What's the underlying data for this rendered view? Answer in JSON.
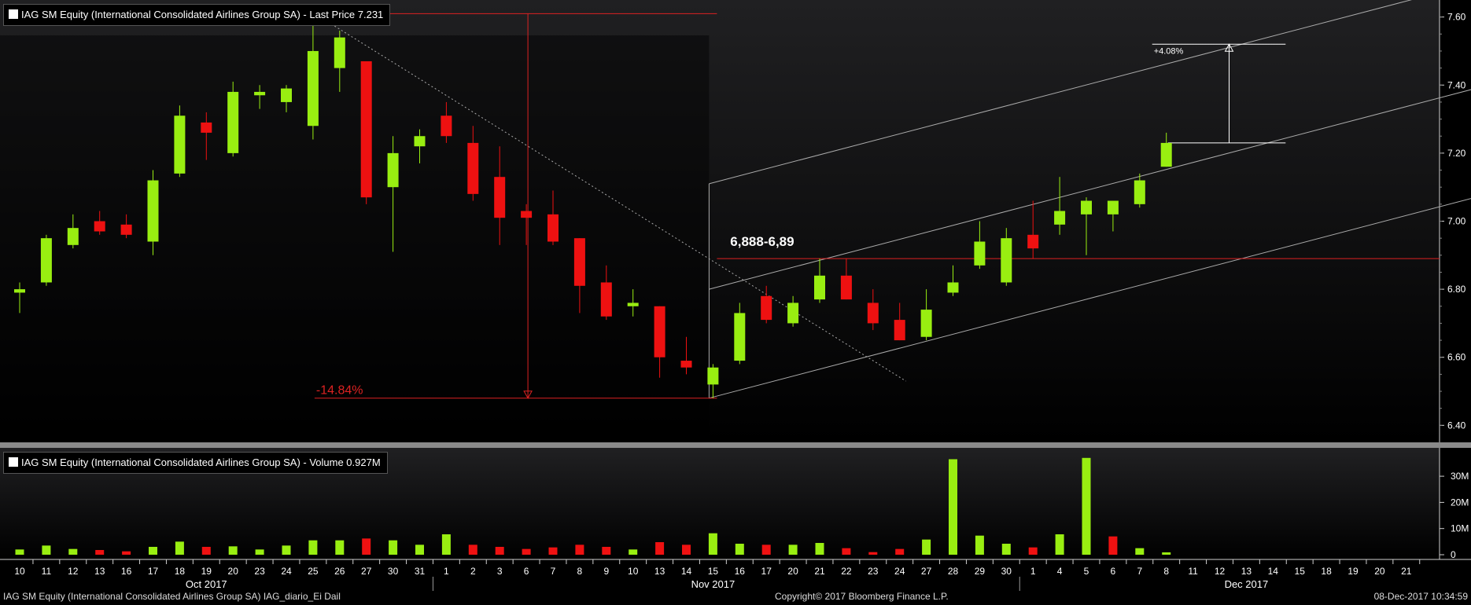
{
  "price_legend": "IAG SM Equity (International Consolidated Airlines Group SA) - Last Price 7.231",
  "volume_legend": "IAG SM Equity (International Consolidated Airlines Group SA) - Volume 0.927M",
  "footer": {
    "left": "IAG SM Equity (International Consolidated Airlines Group SA) IAG_diario_Ei  Dail",
    "center": "Copyright© 2017 Bloomberg Finance L.P.",
    "right": "08-Dec-2017 10:34:59"
  },
  "colors": {
    "up": "#99ee11",
    "down": "#ee1111",
    "background": "#000000",
    "annotation": "#dd2222",
    "channel": "#aaaaaa"
  },
  "chart_data": {
    "type": "candlestick",
    "price_axis": {
      "min": 6.35,
      "max": 7.65,
      "ticks": [
        6.4,
        6.6,
        6.8,
        7.0,
        7.2,
        7.4,
        7.6
      ],
      "tick_labels": [
        "6.40",
        "6.60",
        "6.80",
        "7.00",
        "7.20",
        "7.40",
        "7.60"
      ]
    },
    "volume_axis": {
      "max_millions": 38,
      "ticks": [
        0,
        10,
        20,
        30
      ],
      "tick_labels": [
        "0",
        "10M",
        "20M",
        "30M"
      ]
    },
    "x_labels": [
      "10",
      "11",
      "12",
      "13",
      "16",
      "17",
      "18",
      "19",
      "20",
      "23",
      "24",
      "25",
      "26",
      "27",
      "30",
      "31",
      "1",
      "2",
      "3",
      "6",
      "7",
      "8",
      "9",
      "10",
      "13",
      "14",
      "15",
      "16",
      "17",
      "20",
      "21",
      "22",
      "23",
      "24",
      "27",
      "28",
      "29",
      "30",
      "1",
      "4",
      "5",
      "6",
      "7",
      "8",
      "11",
      "12",
      "13",
      "14",
      "15",
      "18",
      "19",
      "20",
      "21"
    ],
    "month_labels": [
      {
        "label": "Oct 2017",
        "index": 7.5
      },
      {
        "label": "Nov 2017",
        "index": 26.5
      },
      {
        "label": "Dec 2017",
        "index": 46.5
      }
    ],
    "month_separators": [
      15.5,
      37.5
    ],
    "candles": [
      {
        "o": 6.79,
        "h": 6.82,
        "l": 6.73,
        "c": 6.8
      },
      {
        "o": 6.82,
        "h": 6.96,
        "l": 6.81,
        "c": 6.95
      },
      {
        "o": 6.93,
        "h": 7.02,
        "l": 6.92,
        "c": 6.98
      },
      {
        "o": 7.0,
        "h": 7.03,
        "l": 6.96,
        "c": 6.97
      },
      {
        "o": 6.99,
        "h": 7.02,
        "l": 6.95,
        "c": 6.96
      },
      {
        "o": 6.94,
        "h": 7.15,
        "l": 6.9,
        "c": 7.12
      },
      {
        "o": 7.14,
        "h": 7.34,
        "l": 7.13,
        "c": 7.31
      },
      {
        "o": 7.29,
        "h": 7.32,
        "l": 7.18,
        "c": 7.26
      },
      {
        "o": 7.2,
        "h": 7.41,
        "l": 7.19,
        "c": 7.38
      },
      {
        "o": 7.37,
        "h": 7.4,
        "l": 7.33,
        "c": 7.38
      },
      {
        "o": 7.35,
        "h": 7.4,
        "l": 7.32,
        "c": 7.39
      },
      {
        "o": 7.28,
        "h": 7.61,
        "l": 7.24,
        "c": 7.5
      },
      {
        "o": 7.45,
        "h": 7.56,
        "l": 7.38,
        "c": 7.54
      },
      {
        "o": 7.47,
        "h": 7.47,
        "l": 7.05,
        "c": 7.07
      },
      {
        "o": 7.1,
        "h": 7.25,
        "l": 6.91,
        "c": 7.2
      },
      {
        "o": 7.22,
        "h": 7.27,
        "l": 7.17,
        "c": 7.25
      },
      {
        "o": 7.31,
        "h": 7.35,
        "l": 7.23,
        "c": 7.25
      },
      {
        "o": 7.23,
        "h": 7.28,
        "l": 7.06,
        "c": 7.08
      },
      {
        "o": 7.13,
        "h": 7.22,
        "l": 6.93,
        "c": 7.01
      },
      {
        "o": 7.03,
        "h": 7.05,
        "l": 6.93,
        "c": 7.01
      },
      {
        "o": 7.02,
        "h": 7.09,
        "l": 6.93,
        "c": 6.94
      },
      {
        "o": 6.95,
        "h": 6.95,
        "l": 6.73,
        "c": 6.81
      },
      {
        "o": 6.82,
        "h": 6.87,
        "l": 6.71,
        "c": 6.72
      },
      {
        "o": 6.75,
        "h": 6.8,
        "l": 6.72,
        "c": 6.76
      },
      {
        "o": 6.75,
        "h": 6.75,
        "l": 6.54,
        "c": 6.6
      },
      {
        "o": 6.59,
        "h": 6.66,
        "l": 6.55,
        "c": 6.57
      },
      {
        "o": 6.52,
        "h": 6.58,
        "l": 6.48,
        "c": 6.57
      },
      {
        "o": 6.59,
        "h": 6.76,
        "l": 6.58,
        "c": 6.73
      },
      {
        "o": 6.78,
        "h": 6.81,
        "l": 6.7,
        "c": 6.71
      },
      {
        "o": 6.7,
        "h": 6.78,
        "l": 6.69,
        "c": 6.76
      },
      {
        "o": 6.77,
        "h": 6.89,
        "l": 6.76,
        "c": 6.84
      },
      {
        "o": 6.84,
        "h": 6.89,
        "l": 6.77,
        "c": 6.77
      },
      {
        "o": 6.76,
        "h": 6.8,
        "l": 6.68,
        "c": 6.7
      },
      {
        "o": 6.71,
        "h": 6.76,
        "l": 6.65,
        "c": 6.65
      },
      {
        "o": 6.66,
        "h": 6.8,
        "l": 6.65,
        "c": 6.74
      },
      {
        "o": 6.79,
        "h": 6.87,
        "l": 6.78,
        "c": 6.82
      },
      {
        "o": 6.87,
        "h": 7.0,
        "l": 6.86,
        "c": 6.94
      },
      {
        "o": 6.82,
        "h": 6.98,
        "l": 6.81,
        "c": 6.95
      },
      {
        "o": 6.96,
        "h": 7.06,
        "l": 6.89,
        "c": 6.92
      },
      {
        "o": 6.99,
        "h": 7.13,
        "l": 6.96,
        "c": 7.03
      },
      {
        "o": 7.02,
        "h": 7.07,
        "l": 6.9,
        "c": 7.06
      },
      {
        "o": 7.02,
        "h": 7.06,
        "l": 6.97,
        "c": 7.06
      },
      {
        "o": 7.05,
        "h": 7.14,
        "l": 7.04,
        "c": 7.12
      },
      {
        "o": 7.16,
        "h": 7.26,
        "l": 7.16,
        "c": 7.23
      }
    ],
    "volume_millions": [
      2,
      3.5,
      2.2,
      1.8,
      1.3,
      3,
      5,
      3,
      3.2,
      2,
      3.5,
      5.5,
      5.5,
      6.2,
      5.5,
      3.8,
      7.8,
      3.8,
      3,
      2.2,
      2.8,
      3.8,
      3,
      2,
      4.8,
      3.8,
      8.2,
      4.2,
      3.8,
      3.8,
      4.5,
      2.5,
      1,
      2.2,
      5.8,
      36.5,
      7.3,
      4.2,
      2.8,
      7.8,
      37,
      7,
      2.5,
      0.9
    ],
    "volume_up": [
      true,
      true,
      true,
      false,
      false,
      true,
      true,
      false,
      true,
      true,
      true,
      true,
      true,
      false,
      true,
      true,
      true,
      false,
      false,
      false,
      false,
      false,
      false,
      true,
      false,
      false,
      true,
      true,
      false,
      true,
      true,
      false,
      false,
      false,
      true,
      true,
      true,
      true,
      false,
      true,
      true,
      false,
      true,
      true
    ],
    "annotations": {
      "decline_label": "-14.84%",
      "decline_top": 7.61,
      "decline_bottom": 6.48,
      "gain_label": "+4.08%",
      "gain_top": 7.52,
      "gain_bottom": 7.23,
      "level_label": "6,888-6,89",
      "level_value": 6.89,
      "channel": {
        "start_index": 26,
        "end_index": 54,
        "mid_start": 6.8,
        "mid_end": 7.39,
        "upper_start": 7.11,
        "upper_end": 7.7,
        "lower_start": 6.48,
        "lower_end": 7.07
      },
      "trendline": {
        "start_index": 11,
        "start_value": 7.61,
        "end_index": 33,
        "end_value": 6.53
      }
    }
  }
}
